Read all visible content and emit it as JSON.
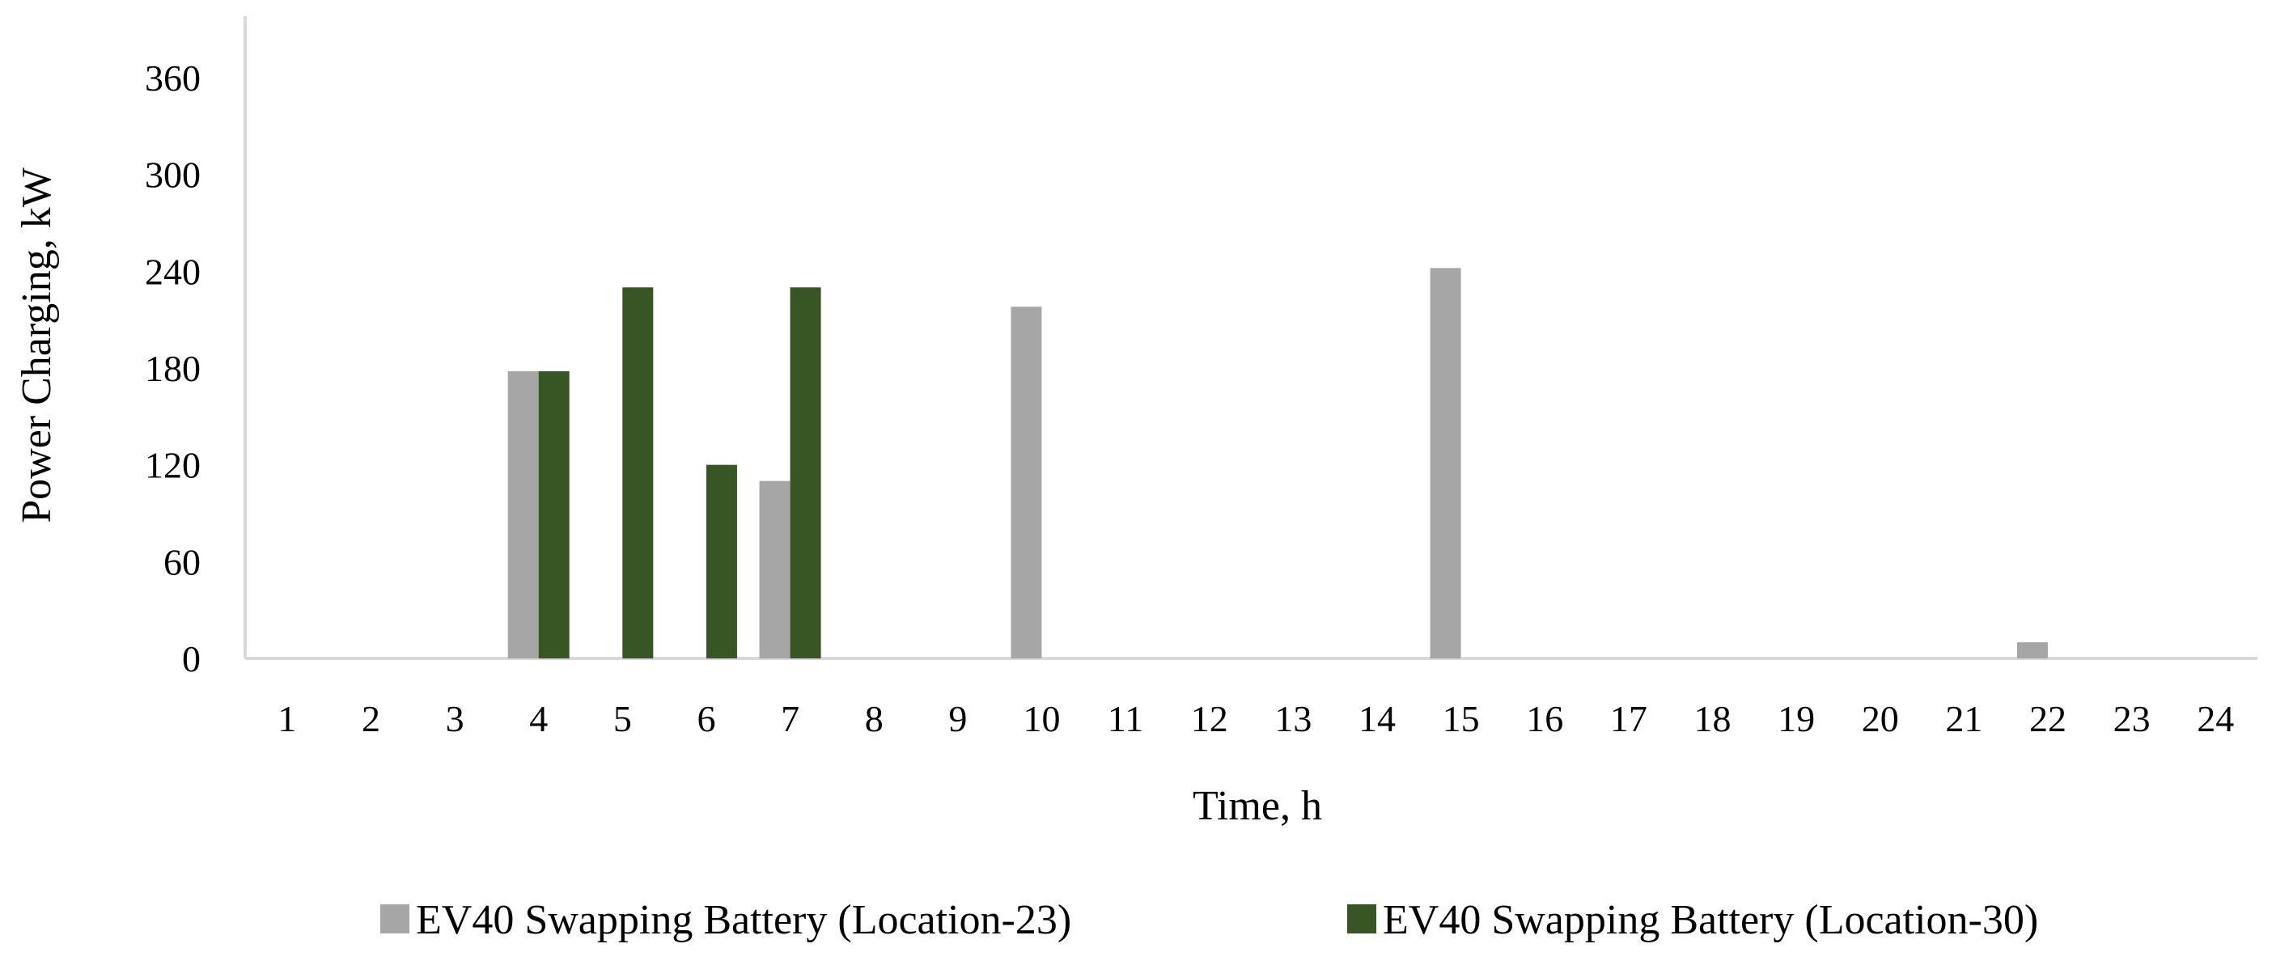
{
  "chart_data": {
    "type": "bar",
    "title": "",
    "xlabel": "Time, h",
    "ylabel": "Power Charging, kW",
    "ylim": [
      0,
      390
    ],
    "yticks": [
      0,
      60,
      120,
      180,
      240,
      300,
      360
    ],
    "categories": [
      "1",
      "2",
      "3",
      "4",
      "5",
      "6",
      "7",
      "8",
      "9",
      "10",
      "11",
      "12",
      "13",
      "14",
      "15",
      "16",
      "17",
      "18",
      "19",
      "20",
      "21",
      "22",
      "23",
      "24"
    ],
    "series": [
      {
        "name": "EV40 Swapping Battery (Location-23)",
        "color": "#a6a6a6",
        "values": [
          0,
          0,
          0,
          178,
          0,
          0,
          110,
          0,
          0,
          218,
          0,
          0,
          0,
          0,
          242,
          0,
          0,
          0,
          0,
          0,
          0,
          10,
          0,
          0
        ]
      },
      {
        "name": "EV40 Swapping Battery (Location-30)",
        "color": "#375623",
        "values": [
          0,
          0,
          0,
          178,
          230,
          120,
          230,
          0,
          0,
          0,
          0,
          0,
          0,
          0,
          0,
          0,
          0,
          0,
          0,
          0,
          0,
          0,
          0,
          0
        ]
      }
    ],
    "grid": false,
    "legend": "bottom"
  }
}
